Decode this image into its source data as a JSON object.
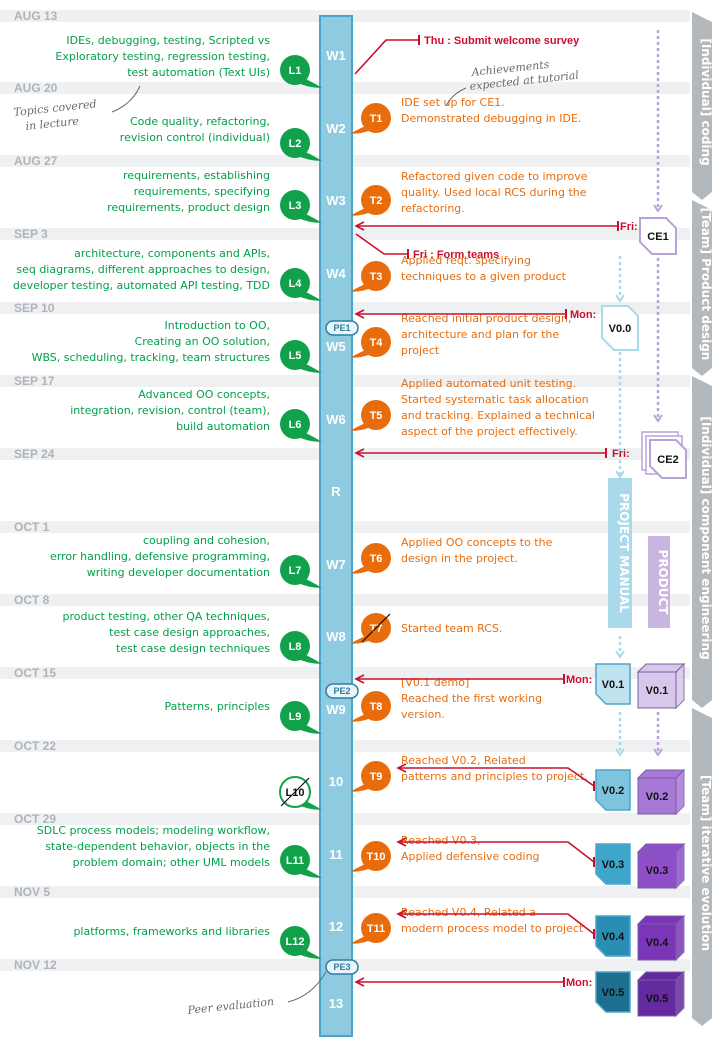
{
  "colors": {
    "axis": "#8ecbe0",
    "axis_border": "#4aa6c8",
    "lecture": "#12a14b",
    "tutorial": "#e86c0c",
    "event": "#c8102e",
    "date": "#aeb4ba",
    "phase": "#b3b8bd",
    "manual": "#a9d9ea",
    "product": "#c9b6e0"
  },
  "dates": [
    "AUG 13",
    "AUG 20",
    "AUG 27",
    "SEP 3",
    "SEP 10",
    "SEP 17",
    "SEP 24",
    "OCT 1",
    "OCT 8",
    "OCT 15",
    "OCT 22",
    "OCT 29",
    "NOV 5",
    "NOV 12"
  ],
  "weeks": [
    "W1",
    "W2",
    "W3",
    "W4",
    "W5",
    "W6",
    "R",
    "W7",
    "W8",
    "W9",
    "10",
    "11",
    "12",
    "13"
  ],
  "lectures": [
    {
      "id": "L1",
      "lines": [
        "IDEs,  debugging,  testing,  Scripted vs",
        "Exploratory testing,  regression testing,",
        "test automation (Text UIs)"
      ],
      "struck": false
    },
    {
      "id": "L2",
      "lines": [
        "Code quality,  refactoring,",
        "revision control (individual)"
      ],
      "struck": false
    },
    {
      "id": "L3",
      "lines": [
        "requirements, establishing",
        "requirements, specifying",
        "requirements, product design"
      ],
      "struck": false
    },
    {
      "id": "L4",
      "lines": [
        "architecture,  components and APIs,",
        "seq diagrams,   different approaches to design,",
        "developer testing,  automated API testing,  TDD"
      ],
      "struck": false
    },
    {
      "id": "L5",
      "lines": [
        "Introduction to OO,",
        "Creating an OO solution,",
        "WBS,  scheduling,  tracking,  team structures"
      ],
      "struck": false
    },
    {
      "id": "L6",
      "lines": [
        "Advanced OO concepts,",
        "integration,  revision,  control (team),",
        "build automation"
      ],
      "struck": false
    },
    {
      "id": "L7",
      "lines": [
        "coupling and cohesion,",
        "error handling,   defensive programming,",
        "writing developer documentation"
      ],
      "struck": false
    },
    {
      "id": "L8",
      "lines": [
        "product testing,  other QA techniques,",
        "test case design approaches,",
        "test case design techniques"
      ],
      "struck": false
    },
    {
      "id": "L9",
      "lines": [
        "Patterns, principles"
      ],
      "struck": false
    },
    {
      "id": "L10",
      "lines": [],
      "struck": true
    },
    {
      "id": "L11",
      "lines": [
        "SDLC process models; modeling workflow,",
        "state-dependent behavior,  objects in the",
        "problem domain;  other UML models"
      ],
      "struck": false
    },
    {
      "id": "L12",
      "lines": [
        "platforms, frameworks and libraries"
      ],
      "struck": false
    }
  ],
  "tutorials": [
    {
      "id": "T1",
      "lines": [
        "IDE set up for CE1.",
        "Demonstrated debugging in IDE."
      ],
      "struck": false
    },
    {
      "id": "T2",
      "lines": [
        "Refactored given code to improve",
        "quality. Used local RCS during the",
        "refactoring."
      ],
      "struck": false
    },
    {
      "id": "T3",
      "lines": [
        "Applied reqt. specifying",
        "techniques to a given product"
      ],
      "struck": false
    },
    {
      "id": "T4",
      "lines": [
        "Reached initial product design,",
        "architecture and plan for the",
        "project"
      ],
      "struck": false
    },
    {
      "id": "T5",
      "lines": [
        "Applied automated unit testing.",
        "Started systematic task allocation",
        "and tracking.  Explained a technical",
        "aspect of the project effectively."
      ],
      "struck": false
    },
    {
      "id": "T6",
      "lines": [
        "Applied OO concepts to the",
        "design in the project."
      ],
      "struck": false
    },
    {
      "id": "T7",
      "lines": [
        "Started team RCS."
      ],
      "struck": true
    },
    {
      "id": "T8",
      "lines": [
        "[V0.1 demo]",
        "Reached the first working",
        "version."
      ],
      "struck": false
    },
    {
      "id": "T9",
      "lines": [
        "Reached V0.2, Related",
        "patterns and principles to project."
      ],
      "struck": false
    },
    {
      "id": "T10",
      "lines": [
        "Reached V0.3,",
        "Applied defensive coding"
      ],
      "struck": false
    },
    {
      "id": "T11",
      "lines": [
        "Reached V0.4, Related a",
        "modern process model to project"
      ],
      "struck": false
    }
  ],
  "events": [
    {
      "label": "Thu : Submit welcome survey"
    },
    {
      "label": "Fri : Form teams"
    },
    {
      "label": "Fri:"
    },
    {
      "label": "Mon:"
    },
    {
      "label": "Fri:"
    },
    {
      "label": "Mon:"
    },
    {
      "label": "Mon:"
    }
  ],
  "peer_evals": [
    "PE1",
    "PE2",
    "PE3"
  ],
  "individual_exercises": [
    "CE1",
    "CE2"
  ],
  "manual_versions": [
    "V0.0",
    "V0.1",
    "V0.2",
    "V0.3",
    "V0.4",
    "V0.5"
  ],
  "product_versions": [
    "V0.1",
    "V0.2",
    "V0.3",
    "V0.4",
    "V0.5"
  ],
  "tracks": {
    "manual": "PROJECT MANUAL",
    "product": "PRODUCT"
  },
  "phases": [
    "[Individual] coding",
    "[Team] Product design",
    "[Individual] component engineering",
    "[Team] iterative evolution"
  ],
  "annotations": {
    "lecture_note": [
      "Topics covered",
      "in lecture"
    ],
    "tutorial_note": [
      "Achievements",
      "expected at tutorial"
    ],
    "peer_note": "Peer evaluation"
  }
}
